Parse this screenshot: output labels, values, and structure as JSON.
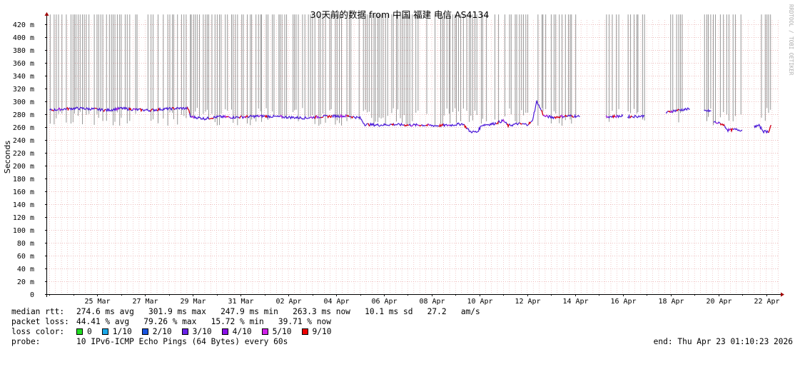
{
  "side_label": "RRDTOOL / TOBI OETIKER",
  "chart_data": {
    "type": "line",
    "title": "30天前的数据 from 中国 福建 电信 AS4134",
    "ylabel": "Seconds",
    "ylim": [
      0,
      0.435
    ],
    "y_ticks": [
      {
        "value": 0,
        "label": "0"
      },
      {
        "value": 0.02,
        "label": "20 m"
      },
      {
        "value": 0.04,
        "label": "40 m"
      },
      {
        "value": 0.06,
        "label": "60 m"
      },
      {
        "value": 0.08,
        "label": "80 m"
      },
      {
        "value": 0.1,
        "label": "100 m"
      },
      {
        "value": 0.12,
        "label": "120 m"
      },
      {
        "value": 0.14,
        "label": "140 m"
      },
      {
        "value": 0.16,
        "label": "160 m"
      },
      {
        "value": 0.18,
        "label": "180 m"
      },
      {
        "value": 0.2,
        "label": "200 m"
      },
      {
        "value": 0.22,
        "label": "220 m"
      },
      {
        "value": 0.24,
        "label": "240 m"
      },
      {
        "value": 0.26,
        "label": "260 m"
      },
      {
        "value": 0.28,
        "label": "280 m"
      },
      {
        "value": 0.3,
        "label": "300 m"
      },
      {
        "value": 0.32,
        "label": "320 m"
      },
      {
        "value": 0.34,
        "label": "340 m"
      },
      {
        "value": 0.36,
        "label": "360 m"
      },
      {
        "value": 0.38,
        "label": "380 m"
      },
      {
        "value": 0.4,
        "label": "400 m"
      },
      {
        "value": 0.42,
        "label": "420 m"
      }
    ],
    "xlim_days": [
      -30.1,
      0
    ],
    "x_ticks": [
      {
        "day": -28.0,
        "label": "25 Mar"
      },
      {
        "day": -26.0,
        "label": "27 Mar"
      },
      {
        "day": -24.0,
        "label": "29 Mar"
      },
      {
        "day": -22.0,
        "label": "31 Mar"
      },
      {
        "day": -20.0,
        "label": "02 Apr"
      },
      {
        "day": -18.0,
        "label": "04 Apr"
      },
      {
        "day": -16.0,
        "label": "06 Apr"
      },
      {
        "day": -14.0,
        "label": "08 Apr"
      },
      {
        "day": -12.0,
        "label": "10 Apr"
      },
      {
        "day": -10.0,
        "label": "12 Apr"
      },
      {
        "day": -8.0,
        "label": "14 Apr"
      },
      {
        "day": -6.0,
        "label": "16 Apr"
      },
      {
        "day": -4.0,
        "label": "18 Apr"
      },
      {
        "day": -2.0,
        "label": "20 Apr"
      },
      {
        "day": 0.0,
        "label": "22 Apr"
      }
    ],
    "median_rtt": [
      [
        -30.0,
        0.286
      ],
      [
        -29.4,
        0.288
      ],
      [
        -28.8,
        0.289
      ],
      [
        -28.2,
        0.288
      ],
      [
        -27.6,
        0.286
      ],
      [
        -27.0,
        0.289
      ],
      [
        -26.4,
        0.287
      ],
      [
        -25.8,
        0.286
      ],
      [
        -25.2,
        0.288
      ],
      [
        -24.6,
        0.289
      ],
      [
        -24.2,
        0.289
      ],
      [
        -24.1,
        0.276
      ],
      [
        -23.5,
        0.273
      ],
      [
        -22.9,
        0.276
      ],
      [
        -22.3,
        0.275
      ],
      [
        -21.7,
        0.276
      ],
      [
        -21.1,
        0.277
      ],
      [
        -20.5,
        0.276
      ],
      [
        -19.9,
        0.275
      ],
      [
        -19.3,
        0.274
      ],
      [
        -18.7,
        0.276
      ],
      [
        -18.1,
        0.277
      ],
      [
        -17.5,
        0.277
      ],
      [
        -17.0,
        0.274
      ],
      [
        -16.8,
        0.264
      ],
      [
        -16.2,
        0.263
      ],
      [
        -15.6,
        0.264
      ],
      [
        -15.0,
        0.263
      ],
      [
        -14.4,
        0.263
      ],
      [
        -13.8,
        0.262
      ],
      [
        -13.2,
        0.263
      ],
      [
        -12.7,
        0.265
      ],
      [
        -12.4,
        0.253
      ],
      [
        -12.1,
        0.252
      ],
      [
        -11.9,
        0.263
      ],
      [
        -11.4,
        0.265
      ],
      [
        -11.0,
        0.27
      ],
      [
        -10.8,
        0.262
      ],
      [
        -10.4,
        0.265
      ],
      [
        -10.0,
        0.264
      ],
      [
        -9.8,
        0.268
      ],
      [
        -9.6,
        0.3
      ],
      [
        -9.3,
        0.277
      ],
      [
        -8.9,
        0.275
      ],
      [
        -8.4,
        0.277
      ],
      [
        -8.0,
        0.277
      ],
      [
        -7.8,
        0.276
      ],
      [
        null,
        null
      ],
      [
        -6.7,
        0.276
      ],
      [
        -6.0,
        0.277
      ],
      [
        null,
        null
      ],
      [
        -5.8,
        0.276
      ],
      [
        -5.1,
        0.277
      ],
      [
        null,
        null
      ],
      [
        -4.2,
        0.282
      ],
      [
        -3.9,
        0.285
      ],
      [
        -3.5,
        0.287
      ],
      [
        -3.2,
        0.288
      ],
      [
        null,
        null
      ],
      [
        -2.6,
        0.285
      ],
      [
        -2.3,
        0.285
      ],
      [
        null,
        null
      ],
      [
        -2.2,
        0.268
      ],
      [
        -1.8,
        0.264
      ],
      [
        -1.6,
        0.255
      ],
      [
        -1.3,
        0.256
      ],
      [
        -1.0,
        0.255
      ],
      [
        null,
        null
      ],
      [
        -0.5,
        0.261
      ],
      [
        -0.3,
        0.262
      ],
      [
        -0.1,
        0.253
      ],
      [
        0.1,
        0.253
      ],
      [
        0.2,
        0.263
      ]
    ],
    "loss_spike_ranges": [
      [
        -30.0,
        -24.1
      ],
      [
        -24.1,
        -16.8
      ],
      [
        -16.8,
        -12.4
      ],
      [
        -12.4,
        -10.0
      ],
      [
        -9.6,
        -7.8
      ],
      [
        -6.7,
        -6.0
      ],
      [
        -5.8,
        -5.1
      ],
      [
        -4.2,
        -3.5
      ],
      [
        -2.6,
        -1.0
      ],
      [
        -0.5,
        0.2
      ]
    ],
    "colors": {
      "grid": "#e8a9a9",
      "axis": "#000000",
      "spikes": "#8c8c8c",
      "line_main": "#4a18d8",
      "line_loss": "#e40000",
      "line_alt": "#b020e0"
    }
  },
  "legend": {
    "median_rtt": {
      "label": "median rtt:",
      "text": "274.6 ms avg   301.9 ms max   247.9 ms min   263.3 ms now   10.1 ms sd   27.2   am/s"
    },
    "packet_loss": {
      "label": "packet loss:",
      "text": "44.41 % avg   79.26 % max   15.72 % min   39.71 % now"
    },
    "loss_color": {
      "label": "loss color:",
      "items": [
        {
          "label": "0",
          "color": "#22dd22"
        },
        {
          "label": "1/10",
          "color": "#1aa8e8"
        },
        {
          "label": "2/10",
          "color": "#1a55e0"
        },
        {
          "label": "3/10",
          "color": "#6a22e8"
        },
        {
          "label": "4/10",
          "color": "#8a10e8"
        },
        {
          "label": "5/10",
          "color": "#d020e8"
        },
        {
          "label": "9/10",
          "color": "#ee0000"
        }
      ]
    },
    "probe": {
      "label": "probe:",
      "text": "10 IPv6-ICMP Echo Pings (64 Bytes) every 60s"
    },
    "end": "end: Thu Apr 23 01:10:23 2026"
  }
}
